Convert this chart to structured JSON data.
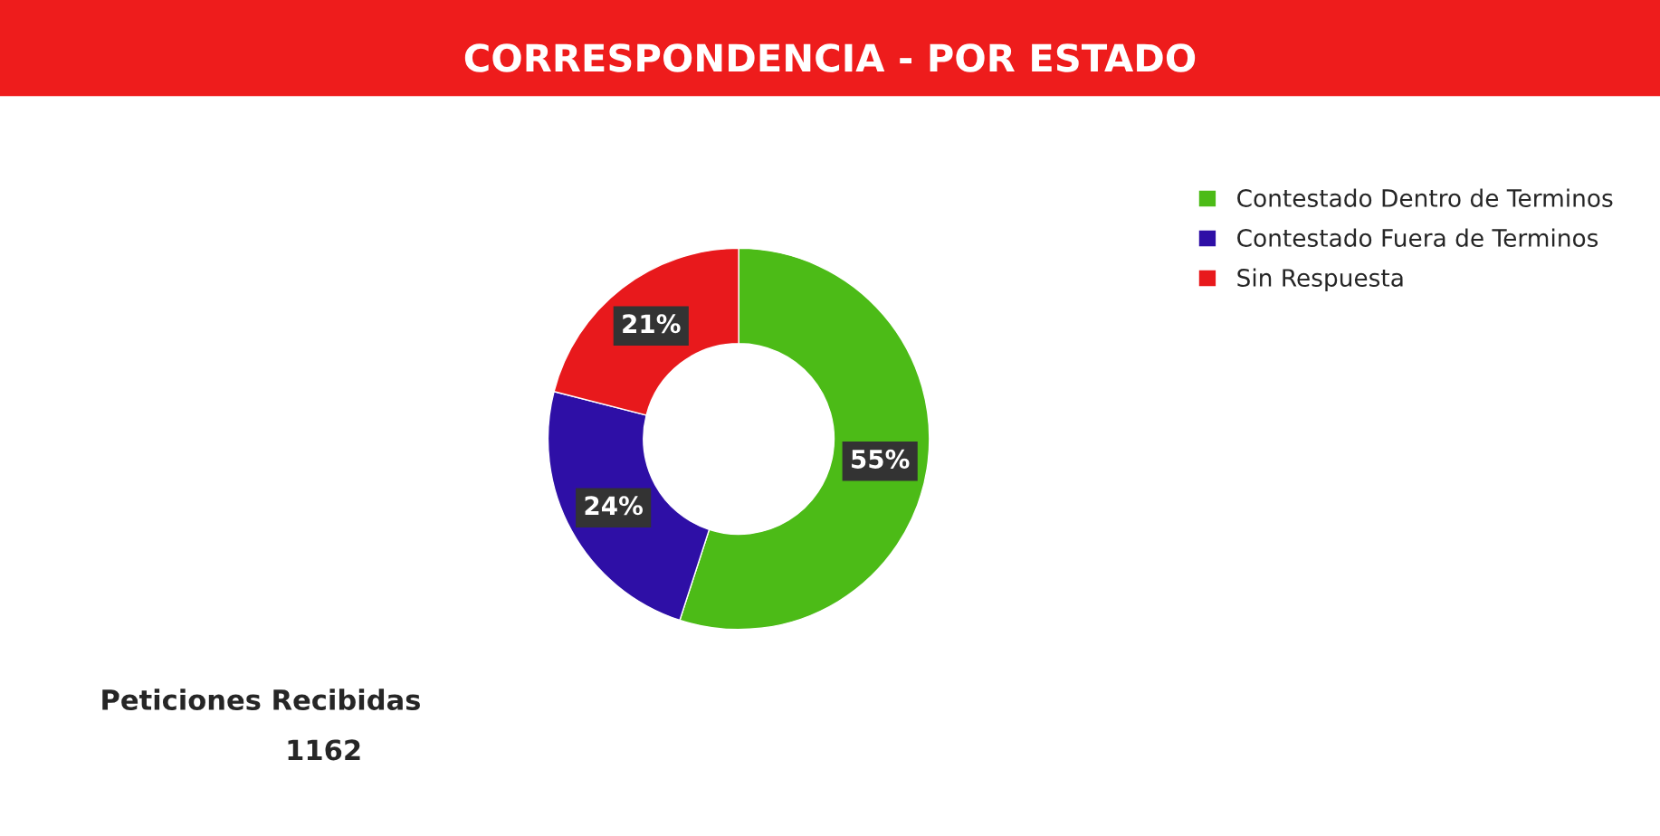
{
  "chart_data": {
    "type": "donut",
    "title": "CORRESPONDENCIA - POR ESTADO",
    "categories": [
      "Contestado Dentro de Terminos",
      "Contestado Fuera de Terminos",
      "Sin Respuesta"
    ],
    "values": [
      55,
      24,
      21
    ],
    "colors": [
      "#4cbb17",
      "#2e0fa6",
      "#e8191c"
    ],
    "value_labels": [
      "55%",
      "24%",
      "21%"
    ],
    "legend": "top right",
    "annotations": [
      "Peticiones Recibidas",
      "1162"
    ]
  }
}
